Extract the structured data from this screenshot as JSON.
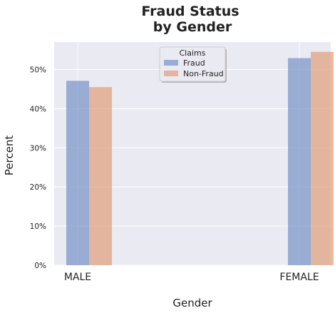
{
  "chart_data": {
    "type": "bar",
    "title": [
      "Fraud Status",
      "by Gender"
    ],
    "xlabel": "Gender",
    "ylabel": "Percent",
    "categories": [
      "MALE",
      "FEMALE"
    ],
    "series": [
      {
        "name": "Fraud",
        "values": [
          47.1,
          52.9
        ],
        "color": "#7a94c6"
      },
      {
        "name": "Non-Fraud",
        "values": [
          45.5,
          54.5
        ],
        "color": "#e1a17e"
      }
    ],
    "ylim": [
      0,
      57
    ],
    "yticks": [
      0,
      10,
      20,
      30,
      40,
      50
    ],
    "ytick_labels": [
      "0%",
      "10%",
      "20%",
      "30%",
      "40%",
      "50%"
    ],
    "grid": true,
    "legend": {
      "title": "Claims",
      "placement": "top-center"
    },
    "colors": {
      "plot_background": "#eaeaf2",
      "grid": "#ffffff"
    }
  }
}
